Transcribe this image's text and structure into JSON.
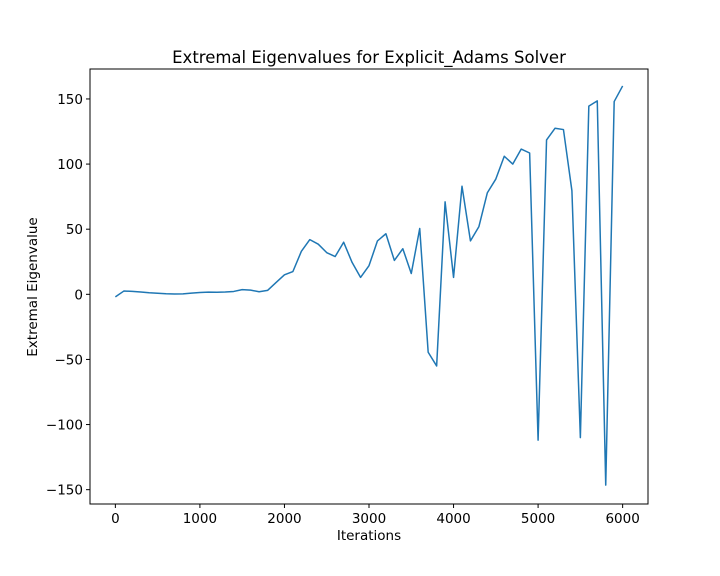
{
  "chart_data": {
    "type": "line",
    "title": "Extremal Eigenvalues for Explicit_Adams Solver",
    "xlabel": "Iterations",
    "ylabel": "Extremal Eigenvalue",
    "xlim": [
      -300,
      6300
    ],
    "ylim": [
      -161,
      173
    ],
    "xticks": [
      0,
      1000,
      2000,
      3000,
      4000,
      5000,
      6000
    ],
    "xtick_labels": [
      "0",
      "1000",
      "2000",
      "3000",
      "4000",
      "5000",
      "6000"
    ],
    "yticks": [
      150,
      100,
      50,
      0,
      -50,
      -100,
      -150
    ],
    "ytick_labels": [
      "150",
      "100",
      "50",
      "0",
      "−50",
      "−100",
      "−150"
    ],
    "grid": false,
    "series": [
      {
        "color": "#1f77b4",
        "x": [
          0,
          100,
          200,
          300,
          400,
          500,
          600,
          700,
          800,
          900,
          1000,
          1100,
          1200,
          1300,
          1400,
          1500,
          1600,
          1700,
          1800,
          1900,
          2000,
          2100,
          2200,
          2300,
          2400,
          2500,
          2600,
          2700,
          2800,
          2900,
          3000,
          3100,
          3200,
          3300,
          3400,
          3500,
          3600,
          3700,
          3800,
          3900,
          4000,
          4100,
          4200,
          4300,
          4400,
          4500,
          4600,
          4700,
          4800,
          4900,
          5000,
          5100,
          5200,
          5300,
          5400,
          5500,
          5600,
          5700,
          5800,
          5900,
          6000
        ],
        "y": [
          -2,
          2.5,
          2.3,
          1.8,
          1.2,
          0.8,
          0.4,
          0.2,
          0.3,
          0.9,
          1.4,
          1.7,
          1.6,
          1.8,
          2.2,
          3.6,
          3.2,
          2,
          3,
          9,
          15,
          17.5,
          33,
          42,
          38.5,
          32,
          29,
          40,
          24.5,
          13,
          22,
          41,
          46.5,
          26,
          35,
          16,
          50.5,
          -44.5,
          -55,
          71,
          13,
          83,
          41,
          52,
          78,
          88.5,
          106,
          100,
          111.5,
          108.5,
          -112,
          118.5,
          127.5,
          126.5,
          79.5,
          -110,
          144.5,
          148.5,
          -146.5,
          148,
          160
        ]
      }
    ]
  }
}
